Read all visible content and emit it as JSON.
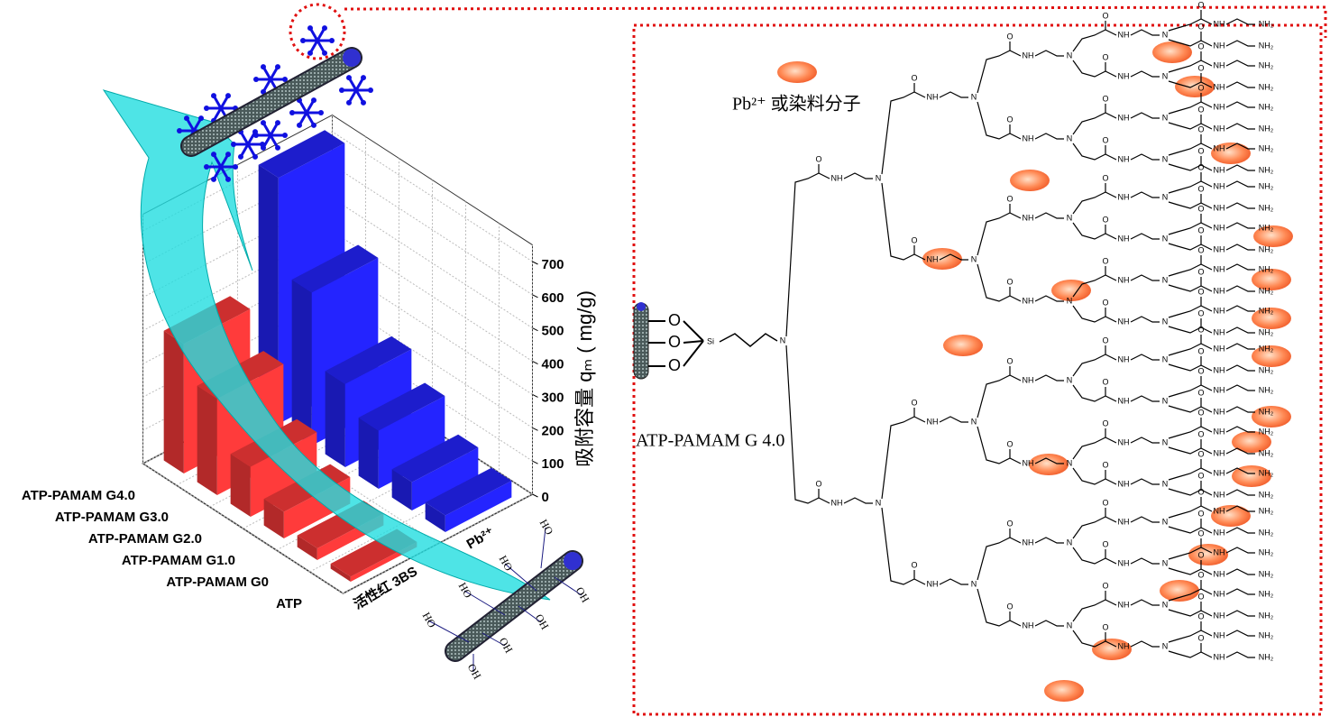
{
  "chart_data": {
    "type": "bar3d",
    "categories": [
      "ATP",
      "ATP-PAMAM G0",
      "ATP-PAMAM G1.0",
      "ATP-PAMAM G2.0",
      "ATP-PAMAM G3.0",
      "ATP-PAMAM G4.0"
    ],
    "series": [
      {
        "name": "活性红 3BS",
        "color": "#ff3b3b",
        "values": [
          15,
          35,
          80,
          150,
          290,
          390
        ]
      },
      {
        "name": "Pb²⁺",
        "color": "#2424ff",
        "values": [
          50,
          85,
          175,
          250,
          460,
          740
        ]
      }
    ],
    "ylabel": "吸附容量 qₘ ( mg/g)",
    "ylim": [
      0,
      750
    ],
    "yticks": [
      0,
      100,
      200,
      300,
      400,
      500,
      600,
      700
    ],
    "grid": true
  },
  "diagram": {
    "legend": "Pb²⁺ 或染料分子",
    "name": "ATP-PAMAM G 4.0",
    "core": "Si",
    "amine": "N",
    "amide": "NH",
    "carbonyl": "O",
    "terminal": "NH₂",
    "surface_oxygen": "O",
    "hydroxyl": "OH",
    "hydroxyl_flipped": "HO"
  }
}
